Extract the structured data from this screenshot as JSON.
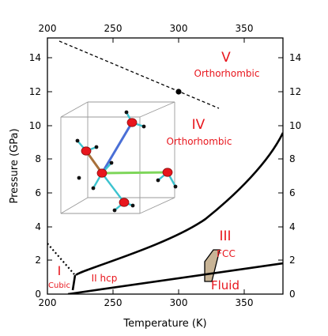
{
  "axes": {
    "xlabel": "Temperature (K)",
    "ylabel": "Pressure (GPa)",
    "xlim": [
      200,
      380
    ],
    "ylim": [
      0,
      15
    ],
    "x_ticks": [
      "200",
      "250",
      "300",
      "350"
    ],
    "y_ticks": [
      "0",
      "2",
      "4",
      "6",
      "8",
      "10",
      "12",
      "14"
    ]
  },
  "phases": {
    "v_numeral": "V",
    "v_name": "Orthorhombic",
    "iv_numeral": "IV",
    "iv_name": "Orthorhombic",
    "iii_numeral": "III",
    "iii_name": "FCC",
    "ii_label": "II hcp",
    "i_numeral": "I",
    "i_name": "Cubic",
    "fluid": "Fluid"
  },
  "colors": {
    "phase_label": "#e8161d",
    "coexistence_fill": "#c8b496",
    "oxygen_atom": "#e8161d",
    "bond_cyan": "#3cc3cf",
    "bond_blue": "#4a6fd6",
    "bond_green": "#7ed65a",
    "bond_brown": "#a8703a"
  }
}
